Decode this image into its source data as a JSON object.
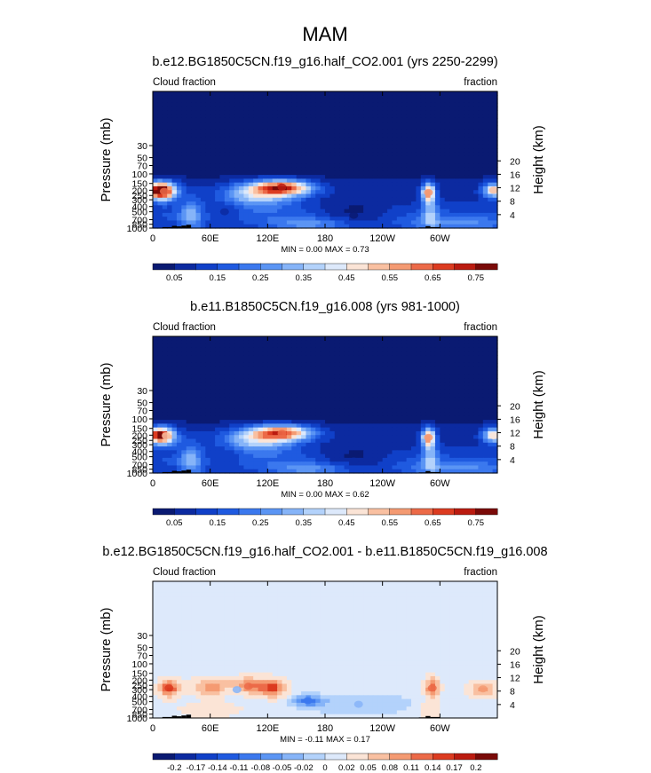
{
  "figure": {
    "title": "MAM"
  },
  "chart_data": [
    {
      "type": "heatmap",
      "title": "b.e12.BG1850C5CN.f19_g16.half_CO2.001 (yrs 2250-2299)",
      "left_label": "Cloud fraction",
      "right_label": "fraction",
      "xlabel": "",
      "ylabel": "Pressure (mb)",
      "y2label": "Height (km)",
      "x_ticks": [
        "0",
        "60E",
        "120E",
        "180",
        "120W",
        "60W"
      ],
      "x_tick_values": [
        0,
        60,
        120,
        180,
        240,
        300
      ],
      "xlim": [
        0,
        360
      ],
      "y_ticks": [
        "1000",
        "850",
        "700",
        "500",
        "400",
        "300",
        "250",
        "200",
        "150",
        "100",
        "70",
        "50",
        "30"
      ],
      "y_tick_values": [
        1000,
        850,
        700,
        500,
        400,
        300,
        250,
        200,
        150,
        100,
        70,
        50,
        30
      ],
      "ylim": [
        1000,
        3
      ],
      "y2_ticks": [
        "4",
        "8",
        "12",
        "16",
        "20"
      ],
      "y2_tick_values": [
        4,
        8,
        12,
        16,
        20
      ],
      "min_max_label": "MIN =   0.00  MAX =   0.73",
      "min": 0.0,
      "max": 0.73,
      "colorbar": {
        "levels": [
          0.05,
          0.1,
          0.15,
          0.2,
          0.25,
          0.3,
          0.35,
          0.4,
          0.45,
          0.5,
          0.55,
          0.6,
          0.65,
          0.7,
          0.75
        ],
        "tick_labels": [
          "0.05",
          "0.15",
          "0.25",
          "0.35",
          "0.45",
          "0.55",
          "0.65",
          "0.75"
        ],
        "colors": [
          "#0a1a72",
          "#0c2aa0",
          "#1040c8",
          "#1f5ae0",
          "#3b78ee",
          "#5b95f4",
          "#86b4f8",
          "#b3d2fb",
          "#dde9fb",
          "#fbe4d6",
          "#f9c0a1",
          "#f49a72",
          "#ec6a48",
          "#dc3b20",
          "#bb1b10",
          "#7a0a08"
        ]
      },
      "features": [
        {
          "name": "upper tropospheric cloud maximum",
          "lon": 135,
          "p": 175,
          "value": 0.73
        },
        {
          "name": "upper tropospheric cloud maximum",
          "lon": 12,
          "p": 210,
          "value": 0.62
        },
        {
          "name": "upper tropospheric cloud maximum",
          "lon": 288,
          "p": 220,
          "value": 0.55
        },
        {
          "name": "upper tropospheric cloud maximum",
          "lon": 356,
          "p": 200,
          "value": 0.5
        },
        {
          "name": "mid-level minimum",
          "lon": 210,
          "p": 580,
          "value": 0.03
        },
        {
          "name": "mid-level minimum",
          "lon": 75,
          "p": 500,
          "value": 0.06
        }
      ]
    },
    {
      "type": "heatmap",
      "title": "b.e11.B1850C5CN.f19_g16.008 (yrs 981-1000)",
      "left_label": "Cloud fraction",
      "right_label": "fraction",
      "xlabel": "",
      "ylabel": "Pressure (mb)",
      "y2label": "Height (km)",
      "x_ticks": [
        "0",
        "60E",
        "120E",
        "180",
        "120W",
        "60W"
      ],
      "x_tick_values": [
        0,
        60,
        120,
        180,
        240,
        300
      ],
      "xlim": [
        0,
        360
      ],
      "y_ticks": [
        "1000",
        "850",
        "700",
        "500",
        "400",
        "300",
        "250",
        "200",
        "150",
        "100",
        "70",
        "50",
        "30"
      ],
      "y_tick_values": [
        1000,
        850,
        700,
        500,
        400,
        300,
        250,
        200,
        150,
        100,
        70,
        50,
        30
      ],
      "ylim": [
        1000,
        3
      ],
      "y2_ticks": [
        "4",
        "8",
        "12",
        "16",
        "20"
      ],
      "y2_tick_values": [
        4,
        8,
        12,
        16,
        20
      ],
      "min_max_label": "MIN =   0.00  MAX =   0.62",
      "min": 0.0,
      "max": 0.62,
      "colorbar": {
        "levels": [
          0.05,
          0.1,
          0.15,
          0.2,
          0.25,
          0.3,
          0.35,
          0.4,
          0.45,
          0.5,
          0.55,
          0.6,
          0.65,
          0.7,
          0.75
        ],
        "tick_labels": [
          "0.05",
          "0.15",
          "0.25",
          "0.35",
          "0.45",
          "0.55",
          "0.65",
          "0.75"
        ],
        "colors": [
          "#0a1a72",
          "#0c2aa0",
          "#1040c8",
          "#1f5ae0",
          "#3b78ee",
          "#5b95f4",
          "#86b4f8",
          "#b3d2fb",
          "#dde9fb",
          "#fbe4d6",
          "#f9c0a1",
          "#f49a72",
          "#ec6a48",
          "#dc3b20",
          "#bb1b10",
          "#7a0a08"
        ]
      },
      "features": [
        {
          "name": "upper tropospheric cloud maximum",
          "lon": 135,
          "p": 185,
          "value": 0.62
        },
        {
          "name": "upper tropospheric cloud maximum",
          "lon": 14,
          "p": 205,
          "value": 0.5
        },
        {
          "name": "upper tropospheric cloud maximum",
          "lon": 288,
          "p": 220,
          "value": 0.55
        },
        {
          "name": "upper tropospheric cloud maximum",
          "lon": 356,
          "p": 205,
          "value": 0.48
        },
        {
          "name": "mid-level minimum",
          "lon": 210,
          "p": 600,
          "value": 0.05
        }
      ]
    },
    {
      "type": "heatmap",
      "title": "b.e12.BG1850C5CN.f19_g16.half_CO2.001 - b.e11.B1850C5CN.f19_g16.008",
      "left_label": "Cloud fraction",
      "right_label": "fraction",
      "xlabel": "",
      "ylabel": "Pressure (mb)",
      "y2label": "Height (km)",
      "x_ticks": [
        "0",
        "60E",
        "120E",
        "180",
        "120W",
        "60W"
      ],
      "x_tick_values": [
        0,
        60,
        120,
        180,
        240,
        300
      ],
      "xlim": [
        0,
        360
      ],
      "y_ticks": [
        "1000",
        "850",
        "700",
        "500",
        "400",
        "300",
        "250",
        "200",
        "150",
        "100",
        "70",
        "50",
        "30"
      ],
      "y_tick_values": [
        1000,
        850,
        700,
        500,
        400,
        300,
        250,
        200,
        150,
        100,
        70,
        50,
        30
      ],
      "ylim": [
        1000,
        3
      ],
      "y2_ticks": [
        "4",
        "8",
        "12",
        "16",
        "20"
      ],
      "y2_tick_values": [
        4,
        8,
        12,
        16,
        20
      ],
      "min_max_label": "MIN =  -0.11  MAX =   0.17",
      "min": -0.11,
      "max": 0.17,
      "colorbar": {
        "levels": [
          -0.2,
          -0.17,
          -0.14,
          -0.11,
          -0.08,
          -0.05,
          -0.02,
          0,
          0.02,
          0.05,
          0.08,
          0.11,
          0.14,
          0.17,
          0.2
        ],
        "tick_labels": [
          "-0.2",
          "-0.17",
          "-0.14",
          "-0.11",
          "-0.08",
          "-0.05",
          "-0.02",
          "0",
          "0.02",
          "0.05",
          "0.08",
          "0.11",
          "0.14",
          "0.17",
          "0.2"
        ],
        "colors": [
          "#0a1a72",
          "#0c2aa0",
          "#1040c8",
          "#1f5ae0",
          "#3b78ee",
          "#5b95f4",
          "#86b4f8",
          "#b3d2fb",
          "#dde9fb",
          "#fbe4d6",
          "#f9c0a1",
          "#f49a72",
          "#ec6a48",
          "#dc3b20",
          "#bb1b10",
          "#7a0a08"
        ]
      },
      "features": [
        {
          "name": "positive anomaly",
          "lon": 17,
          "p": 280,
          "value": 0.15
        },
        {
          "name": "positive anomaly",
          "lon": 62,
          "p": 270,
          "value": 0.1
        },
        {
          "name": "positive anomaly",
          "lon": 100,
          "p": 260,
          "value": 0.12
        },
        {
          "name": "positive anomaly",
          "lon": 125,
          "p": 280,
          "value": 0.15
        },
        {
          "name": "positive anomaly",
          "lon": 292,
          "p": 280,
          "value": 0.12
        },
        {
          "name": "positive anomaly",
          "lon": 345,
          "p": 290,
          "value": 0.09
        },
        {
          "name": "negative anomaly",
          "lon": 162,
          "p": 480,
          "value": -0.09
        },
        {
          "name": "negative anomaly",
          "lon": 88,
          "p": 300,
          "value": -0.03
        },
        {
          "name": "negative anomaly",
          "lon": 215,
          "p": 560,
          "value": -0.03
        }
      ]
    }
  ]
}
